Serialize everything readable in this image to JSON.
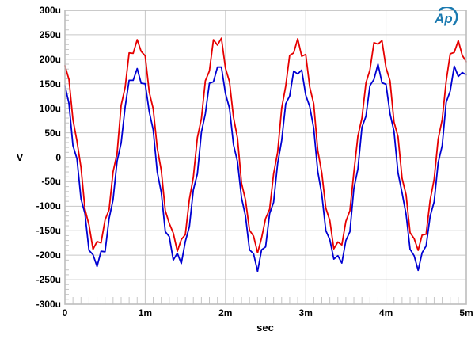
{
  "window": {
    "background": "#ffffff"
  },
  "logo": {
    "text": "Ap",
    "color": "#1b7ab0"
  },
  "labels": {
    "y_axis_unit": "V",
    "x_axis_unit": "sec"
  },
  "chart_data": {
    "type": "line",
    "title": "",
    "xlabel": "sec",
    "ylabel": "V",
    "x_unit_suffix": "m (milliseconds)",
    "y_unit_suffix": "u (microvolts)",
    "xlim": [
      0,
      5
    ],
    "ylim": [
      -300,
      300
    ],
    "grid": true,
    "legend": "none",
    "colors": {
      "grid": "#c6c6c6",
      "frame": "#bdbdbd",
      "text": "#000000"
    },
    "x_major_ticks": [
      {
        "value": 0,
        "label": "0"
      },
      {
        "value": 1,
        "label": "1m"
      },
      {
        "value": 2,
        "label": "2m"
      },
      {
        "value": 3,
        "label": "3m"
      },
      {
        "value": 4,
        "label": "4m"
      },
      {
        "value": 5,
        "label": "5m"
      }
    ],
    "y_major_ticks": [
      {
        "value": 300,
        "label": "300u"
      },
      {
        "value": 250,
        "label": "250u"
      },
      {
        "value": 200,
        "label": "200u"
      },
      {
        "value": 150,
        "label": "150u"
      },
      {
        "value": 100,
        "label": "100u"
      },
      {
        "value": 50,
        "label": "50u"
      },
      {
        "value": 0,
        "label": "0"
      },
      {
        "value": -50,
        "label": "-50u"
      },
      {
        "value": -100,
        "label": "-100u"
      },
      {
        "value": -150,
        "label": "-150u"
      },
      {
        "value": -200,
        "label": "-200u"
      },
      {
        "value": -250,
        "label": "-250u"
      },
      {
        "value": -300,
        "label": "-300u"
      }
    ],
    "x_minor_step": 0.1,
    "y_minor_step": 10,
    "series": [
      {
        "name": "blue-trace",
        "color": "#0000d2",
        "x_start": 0,
        "x_step": 0.05,
        "values": [
          146,
          110,
          24,
          -3,
          -85,
          -115,
          -190,
          -199,
          -223,
          -192,
          -193,
          -125,
          -87,
          -8,
          29,
          103,
          157,
          157,
          181,
          151,
          150,
          93,
          56,
          -30,
          -72,
          -152,
          -162,
          -210,
          -196,
          -217,
          -172,
          -142,
          -67,
          -34,
          51,
          89,
          151,
          154,
          184,
          184,
          130,
          100,
          26,
          -9,
          -83,
          -120,
          -189,
          -197,
          -233,
          -189,
          -183,
          -115,
          -92,
          -13,
          34,
          109,
          125,
          176,
          170,
          178,
          127,
          103,
          59,
          -29,
          -76,
          -150,
          -168,
          -208,
          -201,
          -216,
          -170,
          -152,
          -64,
          -24,
          61,
          84,
          146,
          159,
          190,
          152,
          149,
          89,
          53,
          -32,
          -73,
          -117,
          -188,
          -201,
          -231,
          -195,
          -181,
          -120,
          -91,
          -11,
          24,
          112,
          135,
          186,
          165,
          173,
          168
        ]
      },
      {
        "name": "red-trace",
        "color": "#e60000",
        "x_start": 0,
        "x_step": 0.05,
        "values": [
          187,
          159,
          77,
          33,
          -21,
          -106,
          -138,
          -188,
          -172,
          -175,
          -128,
          -107,
          -30,
          8,
          106,
          143,
          213,
          212,
          240,
          216,
          207,
          133,
          99,
          19,
          -27,
          -109,
          -135,
          -155,
          -192,
          -168,
          -158,
          -86,
          -41,
          40,
          79,
          156,
          176,
          240,
          229,
          243,
          182,
          154,
          82,
          39,
          -53,
          -87,
          -149,
          -161,
          -195,
          -165,
          -125,
          -106,
          -34,
          10,
          100,
          145,
          208,
          213,
          242,
          206,
          210,
          143,
          109,
          14,
          -32,
          -104,
          -129,
          -187,
          -173,
          -179,
          -131,
          -109,
          -31,
          43,
          80,
          152,
          178,
          234,
          231,
          238,
          183,
          156,
          72,
          42,
          -43,
          -77,
          -154,
          -166,
          -190,
          -159,
          -157,
          -87,
          -45,
          37,
          77,
          155,
          211,
          214,
          238,
          208,
          195
        ]
      }
    ]
  }
}
